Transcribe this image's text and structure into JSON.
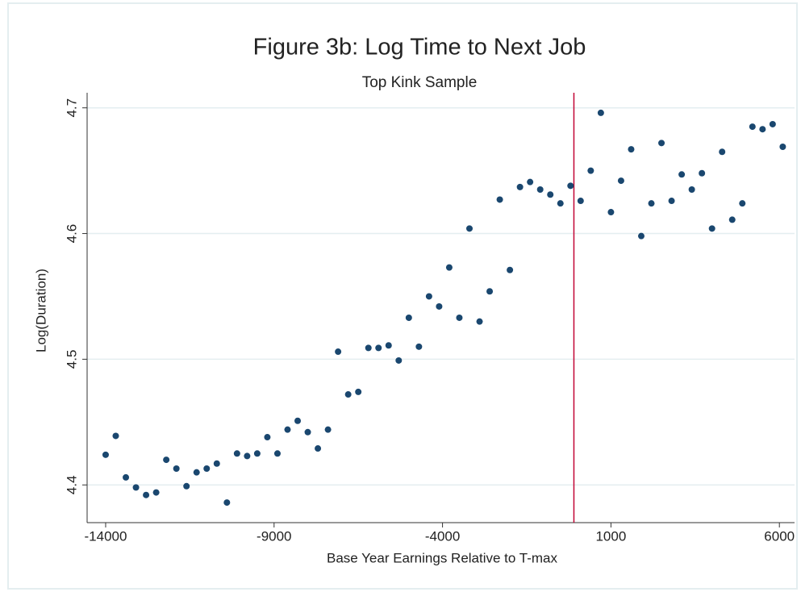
{
  "chart_data": {
    "type": "scatter",
    "title": "Figure 3b: Log Time to Next Job",
    "subtitle": "Top Kink Sample",
    "x_label": "Base Year Earnings Relative to T-max",
    "y_label": "Log(Duration)",
    "x": [
      -14000,
      -13700,
      -13400,
      -13100,
      -12800,
      -12500,
      -12200,
      -11900,
      -11600,
      -11300,
      -11000,
      -10700,
      -10400,
      -10100,
      -9800,
      -9500,
      -9200,
      -8900,
      -8600,
      -8300,
      -8000,
      -7700,
      -7400,
      -7100,
      -6800,
      -6500,
      -6200,
      -5900,
      -5600,
      -5300,
      -5000,
      -4700,
      -4400,
      -4100,
      -3800,
      -3500,
      -3200,
      -2900,
      -2600,
      -2300,
      -2000,
      -1700,
      -1400,
      -1100,
      -800,
      -500,
      -200,
      100,
      400,
      700,
      1000,
      1300,
      1600,
      1900,
      2200,
      2500,
      2800,
      3100,
      3400,
      3700,
      4000,
      4300,
      4600,
      4900,
      5200,
      5500,
      5800,
      6100
    ],
    "values": [
      4.424,
      4.439,
      4.406,
      4.398,
      4.392,
      4.394,
      4.42,
      4.413,
      4.399,
      4.41,
      4.413,
      4.417,
      4.386,
      4.425,
      4.423,
      4.425,
      4.438,
      4.425,
      4.444,
      4.451,
      4.442,
      4.429,
      4.444,
      4.506,
      4.472,
      4.474,
      4.509,
      4.509,
      4.511,
      4.499,
      4.533,
      4.51,
      4.55,
      4.542,
      4.573,
      4.533,
      4.604,
      4.53,
      4.554,
      4.627,
      4.571,
      4.637,
      4.641,
      4.635,
      4.631,
      4.624,
      4.638,
      4.626,
      4.65,
      4.696,
      4.617,
      4.642,
      4.667,
      4.598,
      4.624,
      4.672,
      4.626,
      4.647,
      4.635,
      4.648,
      4.604,
      4.665,
      4.611,
      4.624,
      4.685,
      4.683,
      4.687,
      4.669
    ],
    "color": "#1a476f",
    "vline": {
      "x": -100,
      "color": "#c10534"
    },
    "xlim": [
      -14550,
      6450
    ],
    "ylim": [
      4.37,
      4.712
    ],
    "xticks": [
      -14000,
      -9000,
      -4000,
      1000,
      6000
    ],
    "yticks": [
      4.4,
      4.5,
      4.6,
      4.7
    ],
    "grid": true
  }
}
